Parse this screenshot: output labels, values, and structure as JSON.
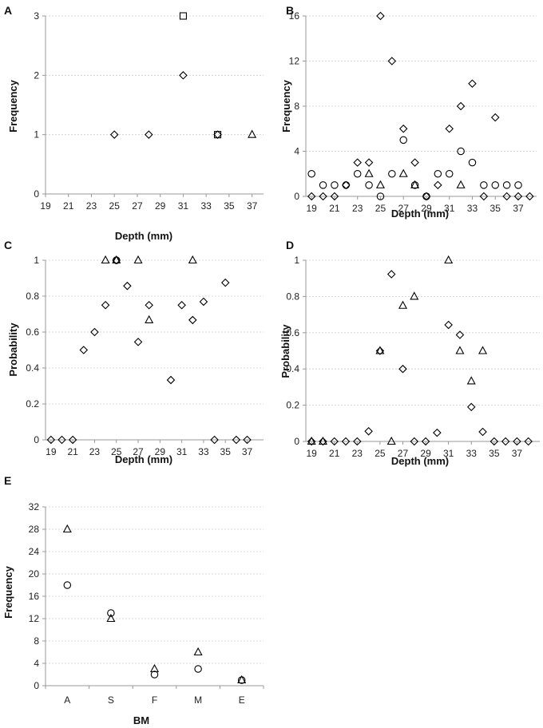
{
  "style": {
    "axis_color": "#999999",
    "grid_color": "#cccccc",
    "marker_color": "#000000"
  },
  "chart_data": [
    {
      "panel": "A",
      "type": "scatter",
      "ylabel": "Frequency",
      "xlabel": "Depth (mm)",
      "xlim": [
        19,
        38
      ],
      "ylim": [
        0,
        3
      ],
      "xticks": [
        "19",
        "21",
        "23",
        "25",
        "27",
        "29",
        "31",
        "33",
        "35",
        "37"
      ],
      "yticks": [
        "0",
        "1",
        "2",
        "3"
      ],
      "series": [
        {
          "name": "diamond",
          "marker": "diamond",
          "points": [
            [
              25,
              1
            ],
            [
              28,
              1
            ],
            [
              31,
              2
            ],
            [
              34,
              1
            ]
          ]
        },
        {
          "name": "square",
          "marker": "square",
          "points": [
            [
              31,
              3
            ],
            [
              34,
              1
            ]
          ]
        },
        {
          "name": "triangle",
          "marker": "triangle",
          "points": [
            [
              37,
              1
            ]
          ]
        }
      ]
    },
    {
      "panel": "B",
      "type": "scatter",
      "ylabel": "Frequency",
      "xlabel": "Depth (mm)",
      "xlim": [
        18.5,
        38.6
      ],
      "ylim": [
        0,
        16
      ],
      "xticks": [
        "19",
        "21",
        "23",
        "25",
        "27",
        "29",
        "31",
        "33",
        "35",
        "37"
      ],
      "yticks": [
        "0",
        "4",
        "8",
        "12",
        "16"
      ],
      "series": [
        {
          "name": "diamond",
          "marker": "diamond",
          "points": [
            [
              19,
              0
            ],
            [
              20,
              0
            ],
            [
              21,
              0
            ],
            [
              22,
              1
            ],
            [
              23,
              3
            ],
            [
              24,
              3
            ],
            [
              25,
              16
            ],
            [
              26,
              12
            ],
            [
              27,
              6
            ],
            [
              28,
              3
            ],
            [
              29,
              0
            ],
            [
              30,
              1
            ],
            [
              31,
              6
            ],
            [
              32,
              8
            ],
            [
              33,
              10
            ],
            [
              34,
              0
            ],
            [
              35,
              7
            ],
            [
              36,
              0
            ],
            [
              37,
              0
            ],
            [
              38,
              0
            ]
          ]
        },
        {
          "name": "circle",
          "marker": "circle",
          "points": [
            [
              19,
              2
            ],
            [
              20,
              1
            ],
            [
              21,
              1
            ],
            [
              22,
              1
            ],
            [
              23,
              2
            ],
            [
              24,
              1
            ],
            [
              25,
              0
            ],
            [
              26,
              2
            ],
            [
              27,
              5
            ],
            [
              28,
              1
            ],
            [
              29,
              0
            ],
            [
              30,
              2
            ],
            [
              31,
              2
            ],
            [
              32,
              4
            ],
            [
              33,
              3
            ],
            [
              34,
              1
            ],
            [
              35,
              1
            ],
            [
              36,
              1
            ],
            [
              37,
              1
            ]
          ]
        },
        {
          "name": "triangle",
          "marker": "triangle",
          "points": [
            [
              24,
              2
            ],
            [
              25,
              1
            ],
            [
              27,
              2
            ],
            [
              28,
              1
            ],
            [
              32,
              1
            ]
          ]
        }
      ]
    },
    {
      "panel": "C",
      "type": "scatter",
      "ylabel": "Probability",
      "xlabel": "Depth (mm)",
      "xlim": [
        18.5,
        38.5
      ],
      "ylim": [
        0,
        1
      ],
      "xticks": [
        "19",
        "21",
        "23",
        "25",
        "27",
        "29",
        "31",
        "33",
        "35",
        "37"
      ],
      "yticks": [
        "0",
        "0.2",
        "0.4",
        "0.6",
        "0.8",
        "1"
      ],
      "series": [
        {
          "name": "diamond",
          "marker": "diamond",
          "points": [
            [
              19,
              0
            ],
            [
              20,
              0
            ],
            [
              21,
              0
            ],
            [
              22,
              0.5
            ],
            [
              23,
              0.6
            ],
            [
              24,
              0.75
            ],
            [
              25,
              1
            ],
            [
              26,
              0.857
            ],
            [
              27,
              0.545
            ],
            [
              28,
              0.75
            ],
            [
              30,
              0.333
            ],
            [
              31,
              0.75
            ],
            [
              32,
              0.667
            ],
            [
              33,
              0.769
            ],
            [
              34,
              0
            ],
            [
              35,
              0.875
            ],
            [
              36,
              0
            ],
            [
              37,
              0
            ]
          ]
        },
        {
          "name": "triangle",
          "marker": "triangle",
          "points": [
            [
              24,
              1
            ],
            [
              25,
              1
            ],
            [
              27,
              1
            ],
            [
              28,
              0.667
            ],
            [
              32,
              1
            ]
          ]
        },
        {
          "name": "circle",
          "marker": "circle",
          "points": [
            [
              25,
              1
            ]
          ]
        }
      ]
    },
    {
      "panel": "D",
      "type": "scatter",
      "ylabel": "Probability",
      "xlabel": "Depth (mm)",
      "xlim": [
        18.5,
        39
      ],
      "ylim": [
        0,
        1
      ],
      "xticks": [
        "19",
        "21",
        "23",
        "25",
        "27",
        "29",
        "31",
        "33",
        "35",
        "37"
      ],
      "yticks": [
        "0",
        "0.2",
        "0.4",
        "0.6",
        "0.8",
        "1"
      ],
      "series": [
        {
          "name": "diamond",
          "marker": "diamond",
          "points": [
            [
              19,
              0
            ],
            [
              20,
              0
            ],
            [
              21,
              0
            ],
            [
              22,
              0
            ],
            [
              23,
              0
            ],
            [
              24,
              0.056
            ],
            [
              25,
              0.5
            ],
            [
              26,
              0.923
            ],
            [
              27,
              0.4
            ],
            [
              28,
              0
            ],
            [
              29,
              0
            ],
            [
              30,
              0.048
            ],
            [
              31,
              0.643
            ],
            [
              32,
              0.588
            ],
            [
              33,
              0.19
            ],
            [
              34,
              0.053
            ],
            [
              35,
              0
            ],
            [
              36,
              0
            ],
            [
              37,
              0
            ],
            [
              38,
              0
            ]
          ]
        },
        {
          "name": "triangle",
          "marker": "triangle",
          "points": [
            [
              19,
              0
            ],
            [
              20,
              0
            ],
            [
              25,
              0.5
            ],
            [
              26,
              0
            ],
            [
              27,
              0.75
            ],
            [
              28,
              0.8
            ],
            [
              31,
              1
            ],
            [
              32,
              0.5
            ],
            [
              33,
              0.333
            ],
            [
              34,
              0.5
            ]
          ]
        }
      ]
    },
    {
      "panel": "E",
      "type": "scatter",
      "ylabel": "Frequency",
      "xlabel": "BM",
      "categories": [
        "A",
        "S",
        "F",
        "M",
        "E"
      ],
      "ylim": [
        0,
        32
      ],
      "yticks": [
        "0",
        "4",
        "8",
        "12",
        "16",
        "20",
        "24",
        "28",
        "32"
      ],
      "series": [
        {
          "name": "triangle",
          "marker": "triangle",
          "values": [
            28,
            12,
            3,
            6,
            1
          ]
        },
        {
          "name": "circle",
          "marker": "circle",
          "values": [
            18,
            13,
            2,
            3,
            1
          ]
        }
      ]
    }
  ]
}
